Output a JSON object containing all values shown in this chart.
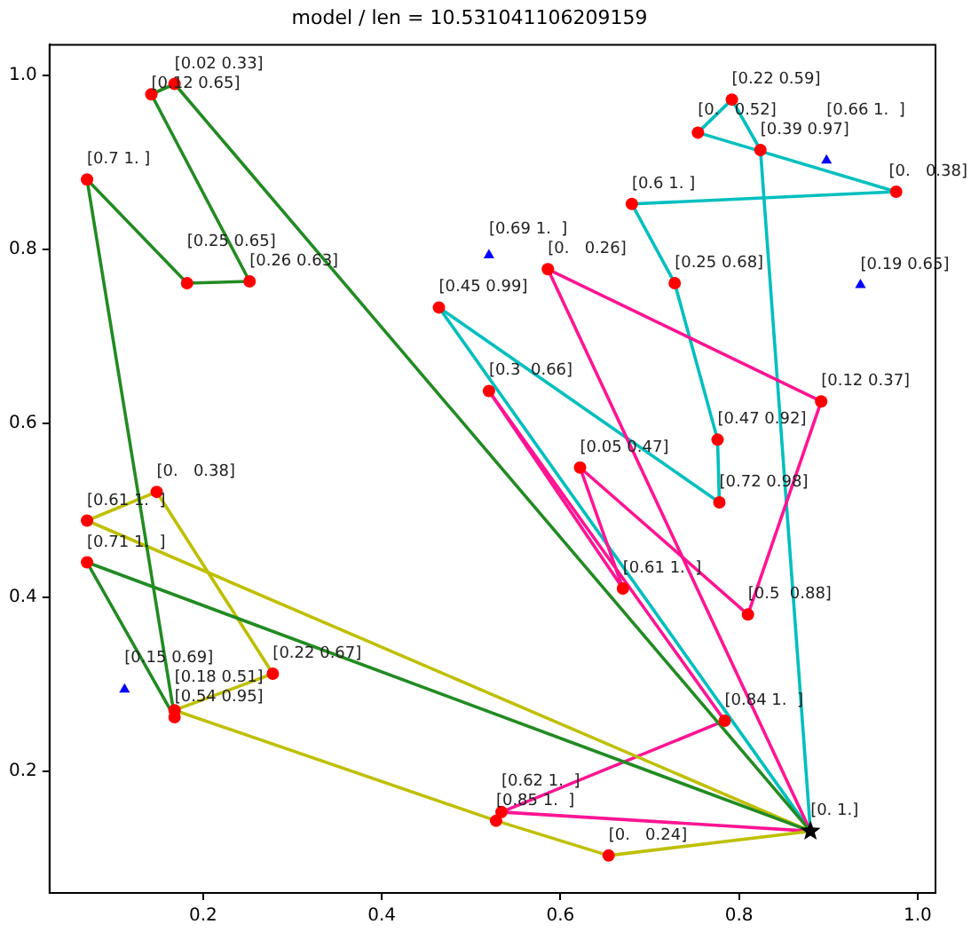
{
  "chart_data": {
    "type": "line",
    "title": "model / len = 10.531041106209159",
    "xlim": [
      0.028,
      1.02
    ],
    "ylim": [
      0.06,
      1.035
    ],
    "xticks": [
      0.2,
      0.4,
      0.6,
      0.8,
      {
        "value": 1,
        "label": "1.0"
      }
    ],
    "yticks": [
      0.2,
      0.4,
      0.6,
      0.8,
      {
        "value": 1,
        "label": "1.0"
      }
    ],
    "grid": false,
    "legend": false,
    "series": [
      {
        "type": "line",
        "color": "#228b22",
        "marker": "none",
        "x": [
          0.88,
          0.168,
          0.142
        ],
        "values": [
          0.131,
          0.99,
          0.978
        ]
      },
      {
        "type": "line",
        "color": "#228b22",
        "marker": "none",
        "x": [
          0.142,
          0.252
        ],
        "values": [
          0.978,
          0.763
        ]
      },
      {
        "type": "line",
        "color": "#228b22",
        "marker": "none",
        "x": [
          0.252,
          0.182,
          0.07
        ],
        "values": [
          0.763,
          0.761,
          0.88
        ]
      },
      {
        "type": "line",
        "color": "#228b22",
        "marker": "none",
        "x": [
          0.07,
          0.168
        ],
        "values": [
          0.88,
          0.262
        ]
      },
      {
        "type": "line",
        "color": "#228b22",
        "marker": "none",
        "x": [
          0.168,
          0.07
        ],
        "values": [
          0.262,
          0.44
        ]
      },
      {
        "type": "line",
        "color": "#228b22",
        "marker": "none",
        "x": [
          0.07,
          0.88
        ],
        "values": [
          0.44,
          0.131
        ]
      },
      {
        "type": "line",
        "color": "#bfbf00",
        "marker": "none",
        "x": [
          0.88,
          0.07
        ],
        "values": [
          0.131,
          0.488
        ]
      },
      {
        "type": "line",
        "color": "#bfbf00",
        "marker": "none",
        "x": [
          0.07,
          0.148,
          0.278
        ],
        "values": [
          0.488,
          0.521,
          0.312
        ]
      },
      {
        "type": "line",
        "color": "#bfbf00",
        "marker": "none",
        "x": [
          0.278,
          0.168
        ],
        "values": [
          0.312,
          0.27
        ]
      },
      {
        "type": "line",
        "color": "#bfbf00",
        "marker": "none",
        "x": [
          0.168,
          0.528,
          0.654,
          0.88
        ],
        "values": [
          0.27,
          0.143,
          0.103,
          0.131
        ]
      },
      {
        "type": "line",
        "color": "#ff1493",
        "marker": "none",
        "x": [
          0.88,
          0.534
        ],
        "values": [
          0.131,
          0.153
        ]
      },
      {
        "type": "line",
        "color": "#ff1493",
        "marker": "none",
        "x": [
          0.534,
          0.784
        ],
        "values": [
          0.153,
          0.258
        ]
      },
      {
        "type": "line",
        "color": "#ff1493",
        "marker": "none",
        "x": [
          0.784,
          0.52
        ],
        "values": [
          0.258,
          0.637
        ]
      },
      {
        "type": "line",
        "color": "#ff1493",
        "marker": "none",
        "x": [
          0.52,
          0.67
        ],
        "values": [
          0.637,
          0.41
        ]
      },
      {
        "type": "line",
        "color": "#ff1493",
        "marker": "none",
        "x": [
          0.67,
          0.622
        ],
        "values": [
          0.41,
          0.549
        ]
      },
      {
        "type": "line",
        "color": "#ff1493",
        "marker": "none",
        "x": [
          0.622,
          0.81,
          0.892
        ],
        "values": [
          0.549,
          0.38,
          0.625
        ]
      },
      {
        "type": "line",
        "color": "#ff1493",
        "marker": "none",
        "x": [
          0.892,
          0.586
        ],
        "values": [
          0.625,
          0.777
        ]
      },
      {
        "type": "line",
        "color": "#ff1493",
        "marker": "none",
        "x": [
          0.586,
          0.88
        ],
        "values": [
          0.777,
          0.131
        ]
      },
      {
        "type": "line",
        "color": "#00bfbf",
        "marker": "none",
        "x": [
          0.88,
          0.824,
          0.792,
          0.754
        ],
        "values": [
          0.131,
          0.914,
          0.972,
          0.934
        ]
      },
      {
        "type": "line",
        "color": "#00bfbf",
        "marker": "none",
        "x": [
          0.754,
          0.976
        ],
        "values": [
          0.934,
          0.866
        ]
      },
      {
        "type": "line",
        "color": "#00bfbf",
        "marker": "none",
        "x": [
          0.976,
          0.68
        ],
        "values": [
          0.866,
          0.852
        ]
      },
      {
        "type": "line",
        "color": "#00bfbf",
        "marker": "none",
        "x": [
          0.68,
          0.728,
          0.776,
          0.778
        ],
        "values": [
          0.852,
          0.761,
          0.581,
          0.509
        ]
      },
      {
        "type": "line",
        "color": "#00bfbf",
        "marker": "none",
        "x": [
          0.778,
          0.464
        ],
        "values": [
          0.509,
          0.733
        ]
      },
      {
        "type": "line",
        "color": "#00bfbf",
        "marker": "none",
        "x": [
          0.464,
          0.88
        ],
        "values": [
          0.733,
          0.131
        ]
      },
      {
        "type": "scatter",
        "color": "#ff0000",
        "marker": "circle",
        "x": [
          0.168,
          0.142,
          0.252,
          0.182,
          0.07,
          0.168,
          0.07,
          0.07,
          0.148,
          0.278,
          0.168,
          0.528,
          0.654,
          0.534,
          0.784,
          0.52,
          0.67,
          0.622,
          0.81,
          0.892,
          0.586,
          0.824,
          0.792,
          0.754,
          0.976,
          0.68,
          0.728,
          0.776,
          0.778,
          0.464
        ],
        "values": [
          0.99,
          0.978,
          0.763,
          0.761,
          0.88,
          0.262,
          0.44,
          0.488,
          0.521,
          0.312,
          0.27,
          0.143,
          0.103,
          0.153,
          0.258,
          0.637,
          0.41,
          0.549,
          0.38,
          0.625,
          0.777,
          0.914,
          0.972,
          0.934,
          0.866,
          0.852,
          0.761,
          0.581,
          0.509,
          0.733
        ]
      },
      {
        "type": "scatter",
        "color": "#0000ff",
        "marker": "triangle",
        "x": [
          0.52,
          0.898,
          0.936,
          0.112
        ],
        "values": [
          0.793,
          0.902,
          0.759,
          0.294
        ]
      },
      {
        "type": "scatter",
        "color": "#000000",
        "marker": "star",
        "x": [
          0.88
        ],
        "values": [
          0.131
        ]
      }
    ],
    "annotations": [
      {
        "text": "[0. 1.]",
        "x": 0.88,
        "y": 0.131
      },
      {
        "text": "[0.02 0.33]",
        "x": 0.168,
        "y": 0.99
      },
      {
        "text": "[0.12 0.65]",
        "x": 0.142,
        "y": 0.978
      },
      {
        "text": "[0.26 0.63]",
        "x": 0.252,
        "y": 0.763
      },
      {
        "text": "[0.25 0.65]",
        "x": 0.182,
        "y": 0.761
      },
      {
        "text": "[0.7 1. ]",
        "x": 0.07,
        "y": 0.88
      },
      {
        "text": "[0.54 0.95]",
        "x": 0.168,
        "y": 0.262
      },
      {
        "text": "[0.71 1.  ]",
        "x": 0.07,
        "y": 0.44
      },
      {
        "text": "[0.61 1.  ]",
        "x": 0.07,
        "y": 0.488
      },
      {
        "text": "[0.   0.38]",
        "x": 0.148,
        "y": 0.521
      },
      {
        "text": "[0.22 0.67]",
        "x": 0.278,
        "y": 0.312
      },
      {
        "text": "[0.18 0.51]",
        "x": 0.168,
        "y": 0.27
      },
      {
        "text": "[0.85 1.  ]",
        "x": 0.528,
        "y": 0.143
      },
      {
        "text": "[0.   0.24]",
        "x": 0.654,
        "y": 0.103
      },
      {
        "text": "[0.62 1.  ]",
        "x": 0.534,
        "y": 0.153
      },
      {
        "text": "[0.84 1.  ]",
        "x": 0.784,
        "y": 0.258
      },
      {
        "text": "[0.3  0.66]",
        "x": 0.52,
        "y": 0.637
      },
      {
        "text": "[0.61 1.  ]",
        "x": 0.67,
        "y": 0.41
      },
      {
        "text": "[0.05 0.47]",
        "x": 0.622,
        "y": 0.549
      },
      {
        "text": "[0.5  0.88]",
        "x": 0.81,
        "y": 0.38
      },
      {
        "text": "[0.12 0.37]",
        "x": 0.892,
        "y": 0.625
      },
      {
        "text": "[0.   0.26]",
        "x": 0.586,
        "y": 0.777
      },
      {
        "text": "[0.39 0.97]",
        "x": 0.824,
        "y": 0.914
      },
      {
        "text": "[0.22 0.59]",
        "x": 0.792,
        "y": 0.972
      },
      {
        "text": "[0.   0.52]",
        "x": 0.754,
        "y": 0.934
      },
      {
        "text": "[0.   0.38]",
        "x": 0.976,
        "y": 0.866
      },
      {
        "text": "[0.6 1. ]",
        "x": 0.68,
        "y": 0.852
      },
      {
        "text": "[0.25 0.68]",
        "x": 0.728,
        "y": 0.761
      },
      {
        "text": "[0.47 0.92]",
        "x": 0.776,
        "y": 0.581
      },
      {
        "text": "[0.72 0.98]",
        "x": 0.778,
        "y": 0.509
      },
      {
        "text": "[0.45 0.99]",
        "x": 0.464,
        "y": 0.733
      },
      {
        "text": "[0.69 1.  ]",
        "x": 0.52,
        "y": 0.793
      },
      {
        "text": "[0.66 1.  ]",
        "x": 0.898,
        "y": 0.902
      },
      {
        "text": "[0.19 0.65]",
        "x": 0.936,
        "y": 0.759
      },
      {
        "text": "[0.15 0.69]",
        "x": 0.112,
        "y": 0.294
      }
    ]
  }
}
